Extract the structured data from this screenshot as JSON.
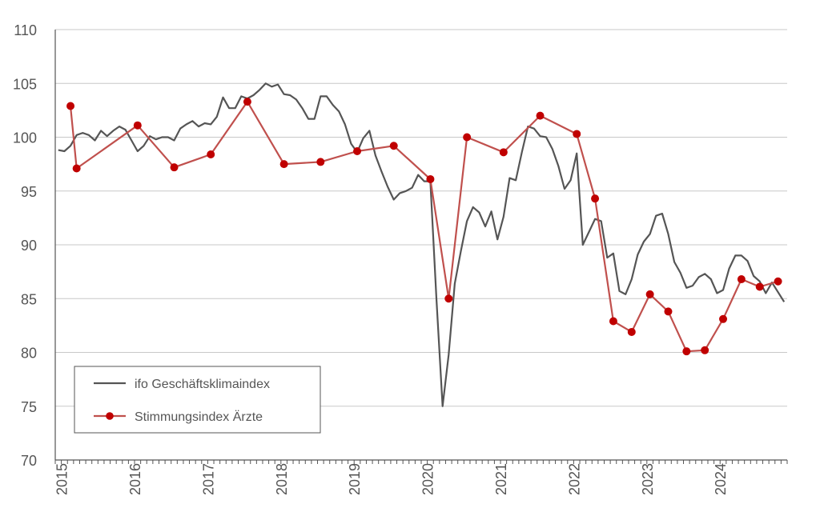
{
  "chart_data": {
    "type": "line",
    "title": "",
    "xlabel": "",
    "ylabel": "",
    "ylim": [
      70,
      110
    ],
    "y_ticks": [
      "70",
      "75",
      "80",
      "85",
      "90",
      "95",
      "100",
      "105",
      "110"
    ],
    "x_range": [
      "2015-01",
      "2024-12"
    ],
    "x_tick_labels": [
      "2015",
      "2016",
      "2017",
      "2018",
      "2019",
      "2020",
      "2021",
      "2022",
      "2023",
      "2024"
    ],
    "grid": "horizontal",
    "legend_position": "bottom-left",
    "series": [
      {
        "name": "ifo Geschäftsklimaindex",
        "color": "#555555",
        "marker": "none",
        "x": [
          "2015-01",
          "2015-02",
          "2015-03",
          "2015-04",
          "2015-05",
          "2015-06",
          "2015-07",
          "2015-08",
          "2015-09",
          "2015-10",
          "2015-11",
          "2015-12",
          "2016-01",
          "2016-02",
          "2016-03",
          "2016-04",
          "2016-05",
          "2016-06",
          "2016-07",
          "2016-08",
          "2016-09",
          "2016-10",
          "2016-11",
          "2016-12",
          "2017-01",
          "2017-02",
          "2017-03",
          "2017-04",
          "2017-05",
          "2017-06",
          "2017-07",
          "2017-08",
          "2017-09",
          "2017-10",
          "2017-11",
          "2017-12",
          "2018-01",
          "2018-02",
          "2018-03",
          "2018-04",
          "2018-05",
          "2018-06",
          "2018-07",
          "2018-08",
          "2018-09",
          "2018-10",
          "2018-11",
          "2018-12",
          "2019-01",
          "2019-02",
          "2019-03",
          "2019-04",
          "2019-05",
          "2019-06",
          "2019-07",
          "2019-08",
          "2019-09",
          "2019-10",
          "2019-11",
          "2019-12",
          "2020-01",
          "2020-02",
          "2020-03",
          "2020-04",
          "2020-05",
          "2020-06",
          "2020-07",
          "2020-08",
          "2020-09",
          "2020-10",
          "2020-11",
          "2020-12",
          "2021-01",
          "2021-02",
          "2021-03",
          "2021-04",
          "2021-05",
          "2021-06",
          "2021-07",
          "2021-08",
          "2021-09",
          "2021-10",
          "2021-11",
          "2021-12",
          "2022-01",
          "2022-02",
          "2022-03",
          "2022-04",
          "2022-05",
          "2022-06",
          "2022-07",
          "2022-08",
          "2022-09",
          "2022-10",
          "2022-11",
          "2022-12",
          "2023-01",
          "2023-02",
          "2023-03",
          "2023-04",
          "2023-05",
          "2023-06",
          "2023-07",
          "2023-08",
          "2023-09",
          "2023-10",
          "2023-11",
          "2023-12",
          "2024-01",
          "2024-02",
          "2024-03",
          "2024-04",
          "2024-05",
          "2024-06",
          "2024-07",
          "2024-08",
          "2024-09",
          "2024-10",
          "2024-11",
          "2024-12"
        ],
        "y": [
          98.8,
          98.7,
          99.2,
          100.2,
          100.4,
          100.2,
          99.7,
          100.6,
          100.1,
          100.6,
          101.0,
          100.7,
          99.7,
          98.7,
          99.2,
          100.1,
          99.8,
          100.0,
          100.0,
          99.7,
          100.8,
          101.2,
          101.5,
          101.0,
          101.3,
          101.2,
          101.9,
          103.7,
          102.7,
          102.7,
          103.8,
          103.6,
          103.9,
          104.4,
          105.0,
          104.7,
          104.9,
          104.0,
          103.9,
          103.5,
          102.7,
          101.7,
          101.7,
          103.8,
          103.8,
          103.0,
          102.4,
          101.2,
          99.4,
          98.6,
          99.9,
          100.6,
          98.3,
          96.8,
          95.4,
          94.2,
          94.8,
          95.0,
          95.3,
          96.5,
          95.9,
          95.9,
          85.0,
          75.0,
          79.8,
          86.4,
          89.4,
          92.2,
          93.5,
          93.0,
          91.7,
          93.1,
          90.5,
          92.6,
          96.2,
          96.0,
          98.6,
          101.0,
          100.8,
          100.1,
          100.0,
          98.9,
          97.3,
          95.2,
          96.0,
          98.5,
          90.0,
          91.2,
          92.4,
          92.2,
          88.8,
          89.2,
          85.7,
          85.4,
          86.8,
          89.1,
          90.3,
          91.0,
          92.7,
          92.9,
          91.0,
          88.4,
          87.4,
          86.0,
          86.2,
          87.0,
          87.3,
          86.8,
          85.5,
          85.8,
          87.8,
          89.0,
          89.0,
          88.5,
          87.1,
          86.6,
          85.5,
          86.5,
          85.6,
          84.7
        ]
      },
      {
        "name": "Stimmungsindex Ärzte",
        "color": "#c00000",
        "marker": "circle",
        "x": [
          "2015-03",
          "2015-04",
          "2016-02",
          "2016-08",
          "2017-02",
          "2017-08",
          "2018-02",
          "2018-08",
          "2019-02",
          "2019-08",
          "2020-02",
          "2020-05",
          "2020-08",
          "2021-02",
          "2021-08",
          "2022-02",
          "2022-05",
          "2022-08",
          "2022-11",
          "2023-02",
          "2023-05",
          "2023-08",
          "2023-11",
          "2024-02",
          "2024-05",
          "2024-08",
          "2024-11"
        ],
        "y": [
          102.9,
          97.1,
          101.1,
          97.2,
          98.4,
          103.3,
          97.5,
          97.7,
          98.7,
          99.2,
          96.1,
          85.0,
          100.0,
          98.6,
          102.0,
          100.3,
          94.3,
          82.9,
          81.9,
          85.4,
          83.8,
          80.1,
          80.2,
          83.1,
          86.8,
          86.1,
          86.6
        ]
      }
    ]
  }
}
